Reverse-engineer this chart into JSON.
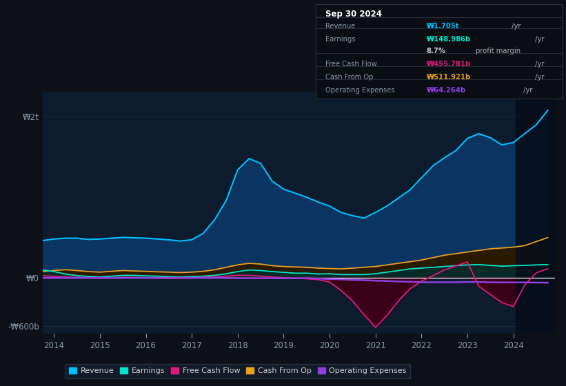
{
  "bg_color": "#0d1117",
  "plot_bg_color": "#0d1b2e",
  "grid_color": "#1e3050",
  "ylim": [
    -700,
    2300
  ],
  "yticks": [
    -600,
    0,
    2000
  ],
  "ytick_labels": [
    "-₩600b",
    "₩0",
    "₩2t"
  ],
  "years": [
    2013.75,
    2014.0,
    2014.25,
    2014.5,
    2014.75,
    2015.0,
    2015.25,
    2015.5,
    2015.75,
    2016.0,
    2016.25,
    2016.5,
    2016.75,
    2017.0,
    2017.25,
    2017.5,
    2017.75,
    2018.0,
    2018.25,
    2018.5,
    2018.75,
    2019.0,
    2019.25,
    2019.5,
    2019.75,
    2020.0,
    2020.25,
    2020.5,
    2020.75,
    2021.0,
    2021.25,
    2021.5,
    2021.75,
    2022.0,
    2022.25,
    2022.5,
    2022.75,
    2023.0,
    2023.25,
    2023.5,
    2023.75,
    2024.0,
    2024.25,
    2024.5,
    2024.75
  ],
  "revenue": [
    460,
    480,
    490,
    490,
    475,
    480,
    490,
    500,
    495,
    490,
    480,
    470,
    455,
    470,
    550,
    720,
    960,
    1340,
    1480,
    1420,
    1200,
    1100,
    1050,
    1000,
    940,
    890,
    810,
    770,
    740,
    810,
    890,
    990,
    1090,
    1240,
    1390,
    1490,
    1580,
    1730,
    1790,
    1740,
    1650,
    1680,
    1790,
    1900,
    2080
  ],
  "earnings": [
    95,
    75,
    45,
    25,
    15,
    8,
    18,
    28,
    28,
    22,
    18,
    12,
    8,
    12,
    18,
    28,
    48,
    75,
    95,
    88,
    75,
    65,
    55,
    55,
    45,
    48,
    38,
    38,
    38,
    48,
    68,
    88,
    108,
    118,
    128,
    138,
    148,
    158,
    162,
    152,
    142,
    148,
    152,
    158,
    162
  ],
  "free_cash_flow": [
    25,
    15,
    8,
    3,
    -2,
    -8,
    -2,
    3,
    3,
    -2,
    -8,
    -8,
    -8,
    -2,
    3,
    8,
    18,
    28,
    28,
    18,
    8,
    -2,
    -8,
    -15,
    -25,
    -55,
    -160,
    -290,
    -460,
    -620,
    -470,
    -290,
    -140,
    -45,
    25,
    95,
    145,
    195,
    -110,
    -210,
    -310,
    -360,
    -90,
    60,
    110
  ],
  "cash_from_op": [
    75,
    88,
    98,
    88,
    75,
    68,
    78,
    88,
    82,
    78,
    72,
    68,
    62,
    68,
    78,
    98,
    128,
    158,
    178,
    168,
    148,
    138,
    132,
    128,
    118,
    112,
    108,
    118,
    128,
    138,
    158,
    178,
    198,
    218,
    248,
    278,
    298,
    318,
    338,
    358,
    368,
    378,
    398,
    448,
    498
  ],
  "op_expenses": [
    -3,
    -3,
    -3,
    -3,
    -3,
    -3,
    -3,
    -3,
    -3,
    -3,
    -3,
    -3,
    -3,
    -3,
    -3,
    -3,
    -3,
    -8,
    -8,
    -8,
    -8,
    -8,
    -8,
    -8,
    -12,
    -18,
    -22,
    -28,
    -32,
    -38,
    -42,
    -48,
    -52,
    -58,
    -58,
    -58,
    -58,
    -55,
    -55,
    -58,
    -60,
    -60,
    -60,
    -62,
    -63
  ],
  "colors": {
    "revenue": "#00bfff",
    "earnings": "#00e5cc",
    "free_cash_flow": "#e0197d",
    "cash_from_op": "#e8a020",
    "op_expenses": "#9040e0"
  },
  "revenue_fill": "#0a3560",
  "earnings_fill": "#0a2a28",
  "fcf_fill": "#3a0018",
  "cashop_fill": "#2a1a00",
  "box_bg": "#0a0d12",
  "box_border": "#2a3040",
  "legend_items": [
    {
      "label": "Revenue",
      "color": "#00bfff"
    },
    {
      "label": "Earnings",
      "color": "#00e5cc"
    },
    {
      "label": "Free Cash Flow",
      "color": "#e0197d"
    },
    {
      "label": "Cash From Op",
      "color": "#e8a020"
    },
    {
      "label": "Operating Expenses",
      "color": "#9040e0"
    }
  ],
  "info_rows": [
    {
      "label": "Revenue",
      "value": "₩1.705t",
      "unit": " /yr",
      "color": "#00bfff"
    },
    {
      "label": "Earnings",
      "value": "₩148.986b",
      "unit": " /yr",
      "color": "#00e5cc"
    },
    {
      "label": "",
      "value": "8.7%",
      "unit": " profit margin",
      "color": "#cccccc"
    },
    {
      "label": "Free Cash Flow",
      "value": "₩455.781b",
      "unit": " /yr",
      "color": "#e0197d"
    },
    {
      "label": "Cash From Op",
      "value": "₩511.921b",
      "unit": " /yr",
      "color": "#e8a020"
    },
    {
      "label": "Operating Expenses",
      "value": "₩64.264b",
      "unit": " /yr",
      "color": "#9040e0"
    }
  ]
}
